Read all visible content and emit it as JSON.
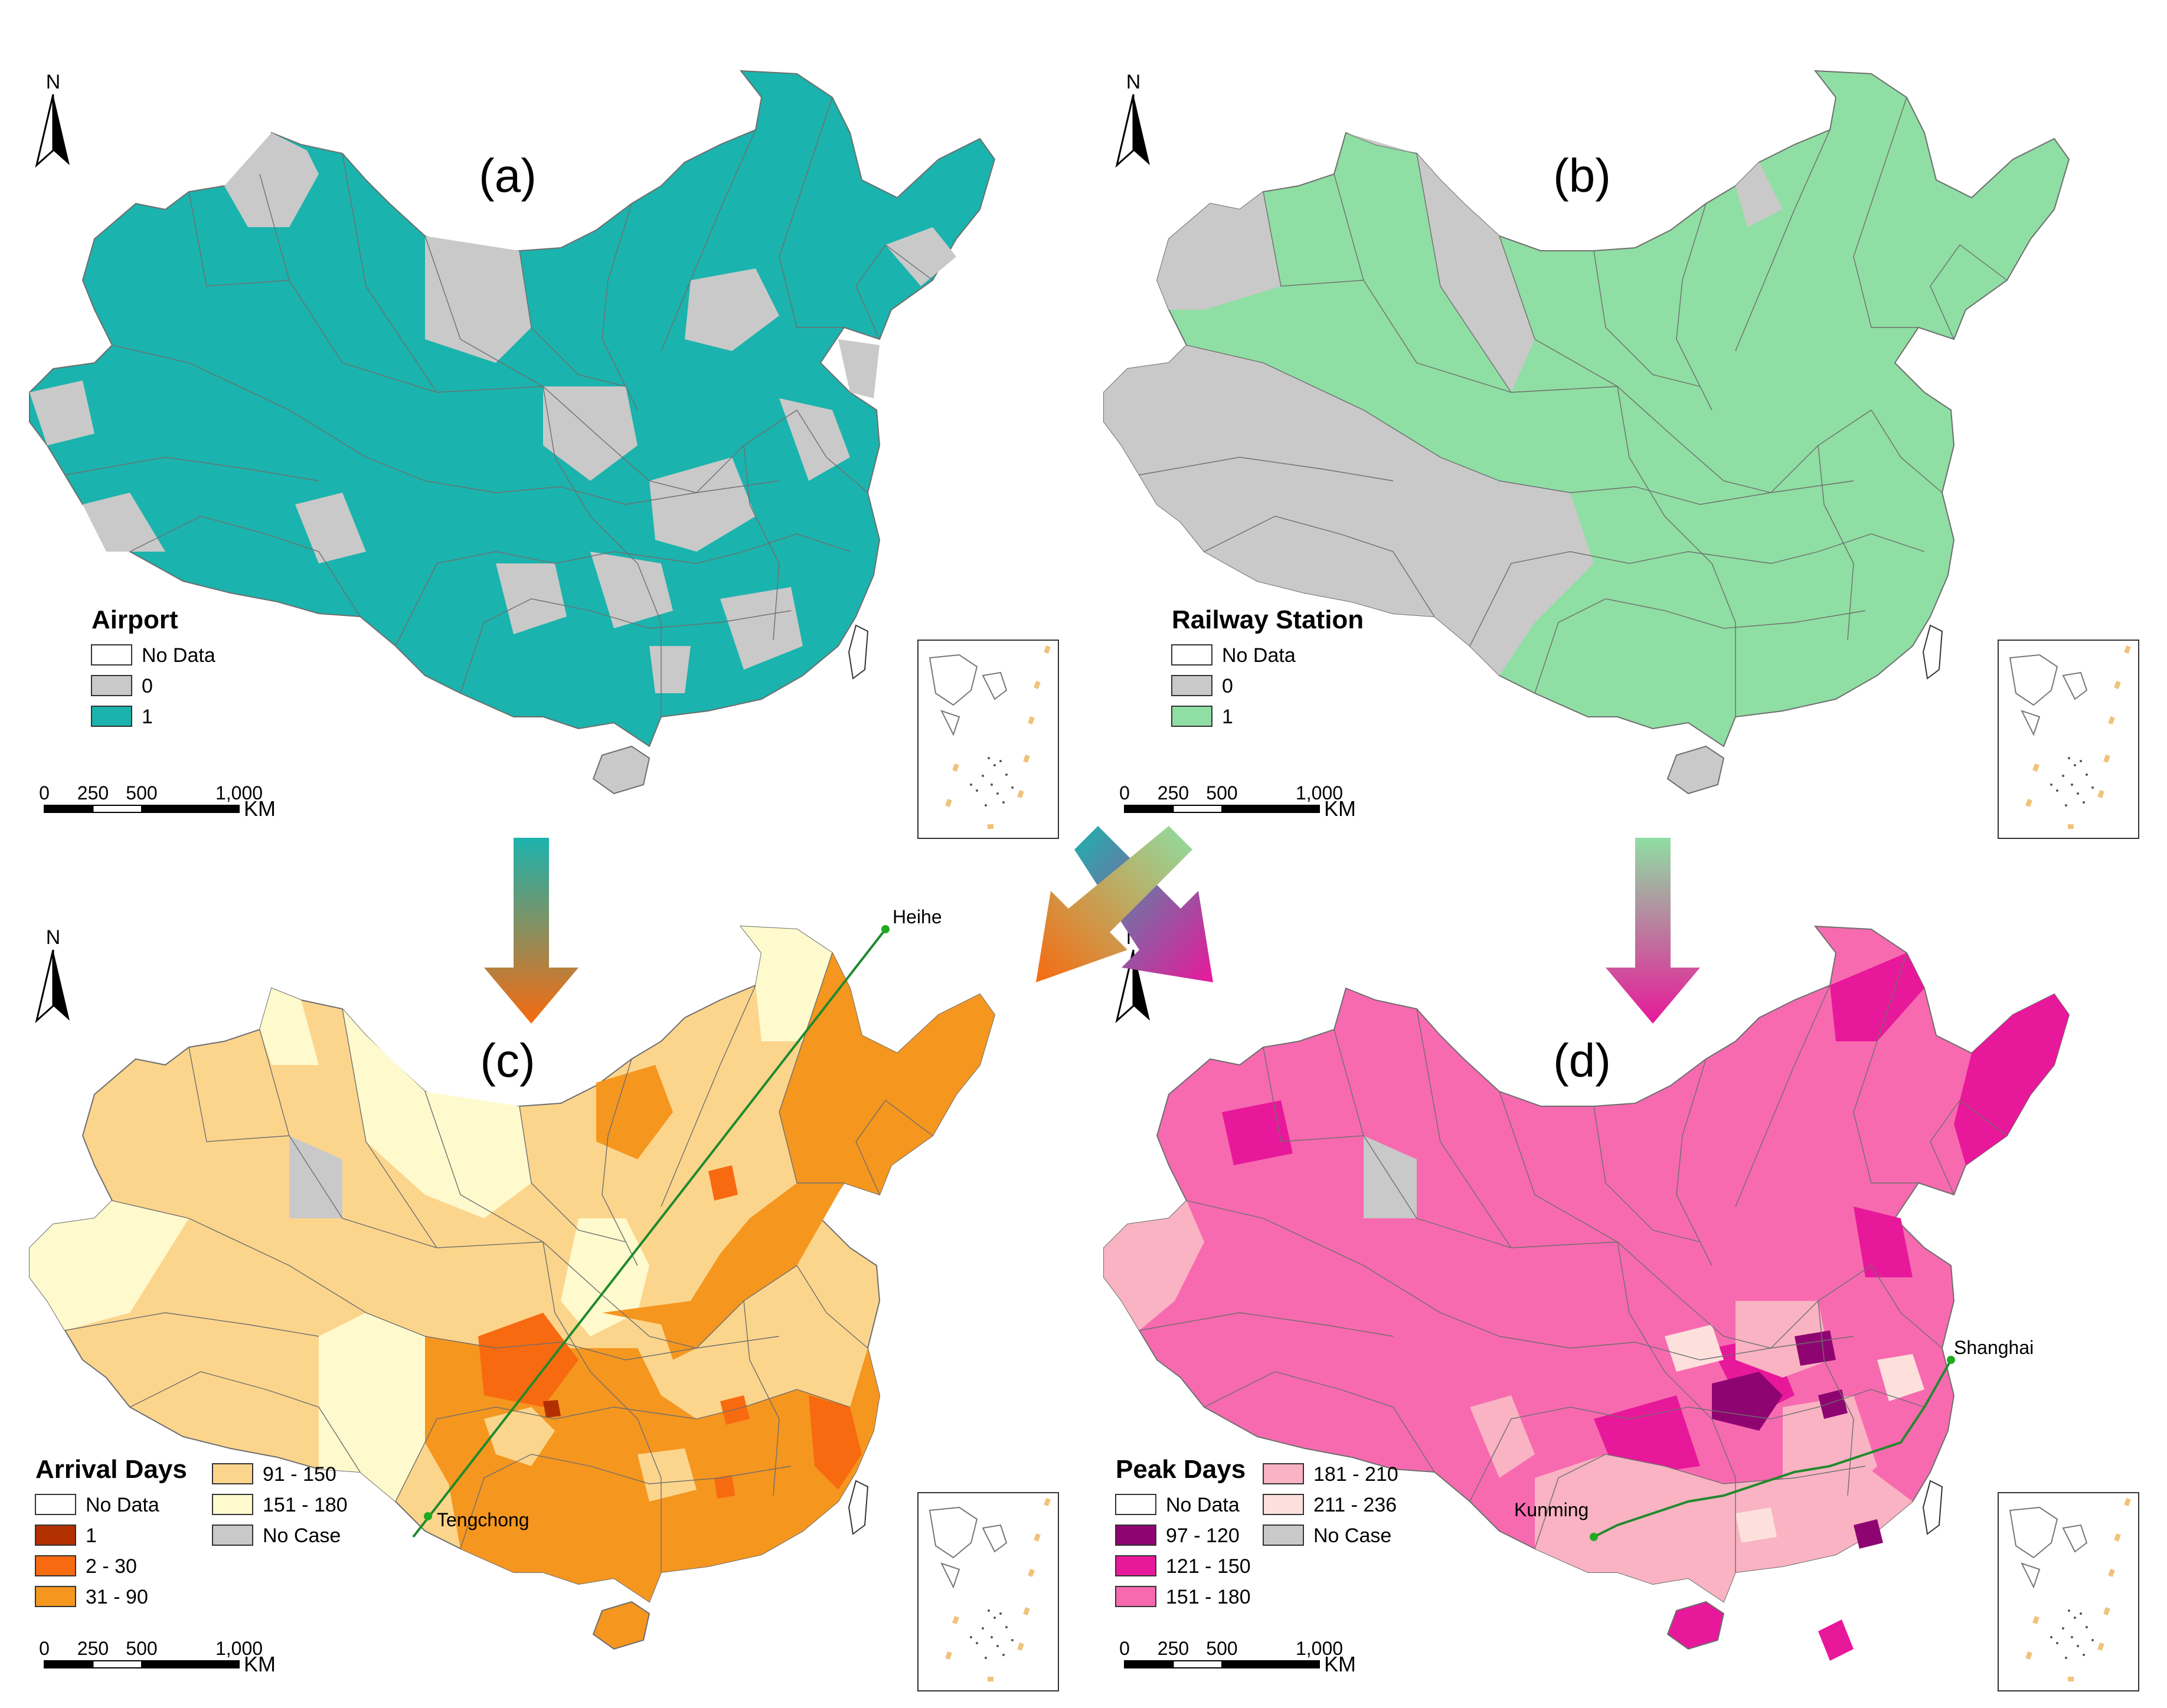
{
  "north_label": "N",
  "scale_bar": {
    "ticks": [
      "0",
      "250",
      "500",
      "1,000"
    ],
    "unit": "KM"
  },
  "panels": [
    {
      "id": "a",
      "tag": "(a)",
      "theme": "airport",
      "legend": {
        "title": "Airport",
        "items": [
          {
            "label": "No Data",
            "color": "#ffffff"
          },
          {
            "label": "0",
            "color": "#c9c9c9"
          },
          {
            "label": "1",
            "color": "#1bb3ad"
          }
        ]
      },
      "colors": {
        "base": "#1bb3ad",
        "patch": "#c9c9c9"
      }
    },
    {
      "id": "b",
      "tag": "(b)",
      "theme": "railway",
      "legend": {
        "title": "Railway Station",
        "items": [
          {
            "label": "No Data",
            "color": "#ffffff"
          },
          {
            "label": "0",
            "color": "#c9c9c9"
          },
          {
            "label": "1",
            "color": "#8fdea3"
          }
        ]
      },
      "colors": {
        "base": "#8fdea3",
        "patch": "#c9c9c9"
      }
    },
    {
      "id": "c",
      "tag": "(c)",
      "theme": "arrival",
      "legend": {
        "title": "Arrival Days",
        "items": [
          {
            "label": "No Data",
            "color": "#ffffff"
          },
          {
            "label": "1",
            "color": "#b23000"
          },
          {
            "label": "2 - 30",
            "color": "#f76a10"
          },
          {
            "label": "31 - 90",
            "color": "#f5961f"
          },
          {
            "label": "91 - 150",
            "color": "#fcd58d"
          },
          {
            "label": "151 - 180",
            "color": "#fffacd"
          },
          {
            "label": "No Case",
            "color": "#c9c9c9"
          }
        ]
      },
      "cities": [
        "Heihe",
        "Tengchong"
      ],
      "line_color": "#1f8a2e"
    },
    {
      "id": "d",
      "tag": "(d)",
      "theme": "peak",
      "legend": {
        "title": "Peak Days",
        "items": [
          {
            "label": "No Data",
            "color": "#ffffff"
          },
          {
            "label": "97 - 120",
            "color": "#8e0572"
          },
          {
            "label": "121 - 150",
            "color": "#e8189a"
          },
          {
            "label": "151 - 180",
            "color": "#f76ab0"
          },
          {
            "label": "181 - 210",
            "color": "#f9b3c2"
          },
          {
            "label": "211 - 236",
            "color": "#fde0dc"
          },
          {
            "label": "No Case",
            "color": "#c9c9c9"
          }
        ]
      },
      "cities": [
        "Shanghai",
        "Kunming"
      ],
      "line_color": "#1f8a2e"
    }
  ],
  "arrows": {
    "teal": "#1bb3ad",
    "green": "#8fdea3",
    "orange": "#f76a10",
    "pink": "#e8189a"
  }
}
